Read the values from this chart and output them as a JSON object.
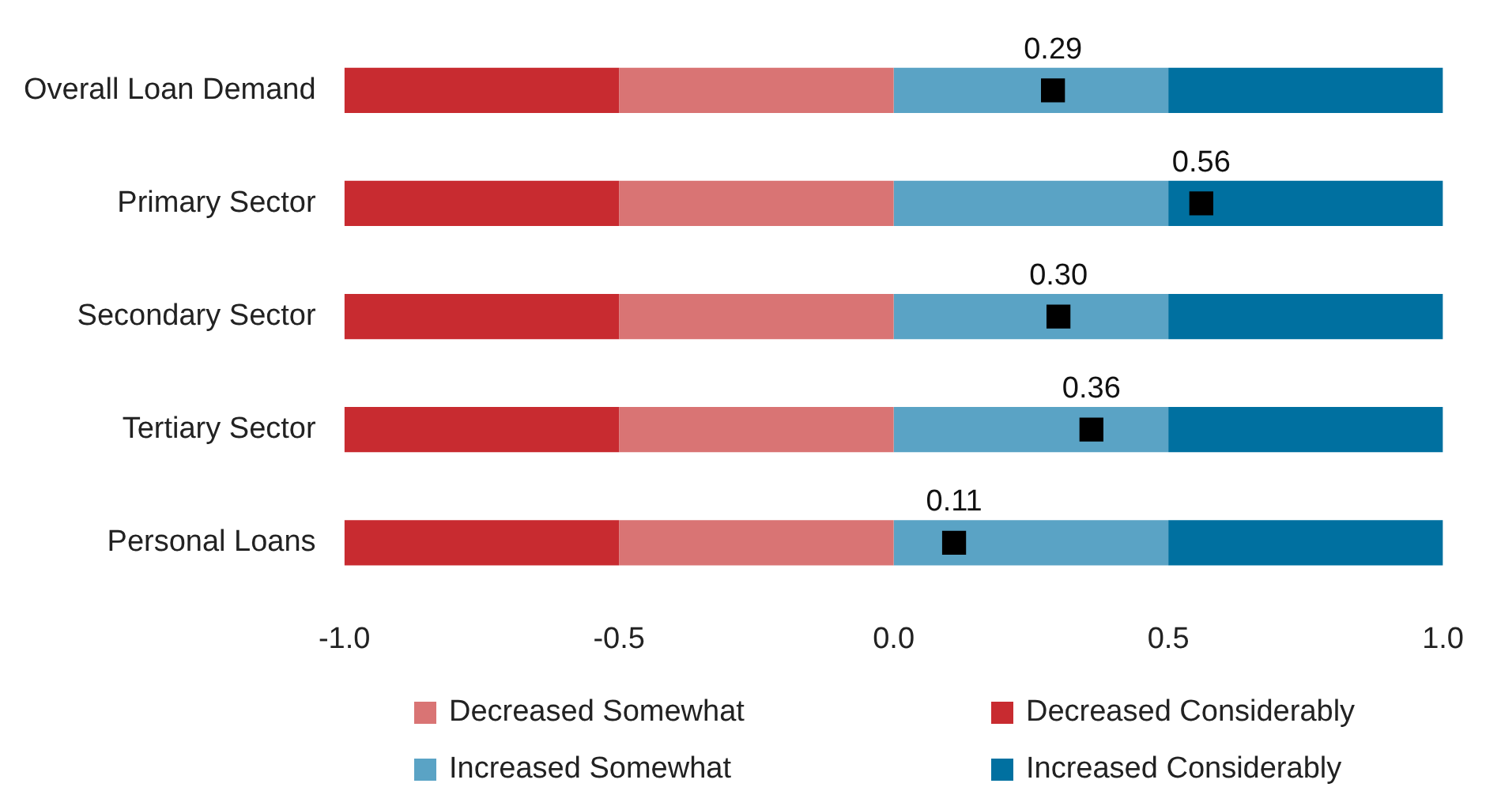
{
  "chart_data": {
    "type": "bar",
    "orientation": "horizontal",
    "stacked": true,
    "categories": [
      "Overall Loan Demand",
      "Primary Sector",
      "Secondary Sector",
      "Tertiary Sector",
      "Personal Loans"
    ],
    "series": [
      {
        "name": "Decreased Somewhat",
        "color": "#d97474",
        "values": [
          -0.5,
          -0.5,
          -0.5,
          -0.5,
          -0.5
        ]
      },
      {
        "name": "Decreased Considerably",
        "color": "#c82b30",
        "values": [
          -0.5,
          -0.5,
          -0.5,
          -0.5,
          -0.5
        ]
      },
      {
        "name": "Increased Somewhat",
        "color": "#5aa3c5",
        "values": [
          0.5,
          0.5,
          0.5,
          0.5,
          0.5
        ]
      },
      {
        "name": "Increased Considerably",
        "color": "#0070a0",
        "values": [
          0.5,
          0.5,
          0.5,
          0.5,
          0.5
        ]
      },
      {
        "type": "scatter",
        "color": "#000000",
        "marker": "square",
        "x": [
          "Overall Loan Demand",
          "Primary Sector",
          "Secondary Sector",
          "Tertiary Sector",
          "Personal Loans"
        ],
        "values": [
          0.29,
          0.56,
          0.3,
          0.36,
          0.11
        ],
        "value_labels": [
          "0.29",
          "0.56",
          "0.30",
          "0.36",
          "0.11"
        ]
      }
    ],
    "xlim": [
      -1,
      1
    ],
    "xticks": [
      {
        "value": -1,
        "label": "-1.0"
      },
      {
        "value": -0.5,
        "label": "-0.5"
      },
      {
        "value": 0,
        "label": "0.0"
      },
      {
        "value": 0.5,
        "label": "0.5"
      },
      {
        "value": 1,
        "label": "1.0"
      }
    ],
    "grid": false,
    "legend": "bottom"
  }
}
